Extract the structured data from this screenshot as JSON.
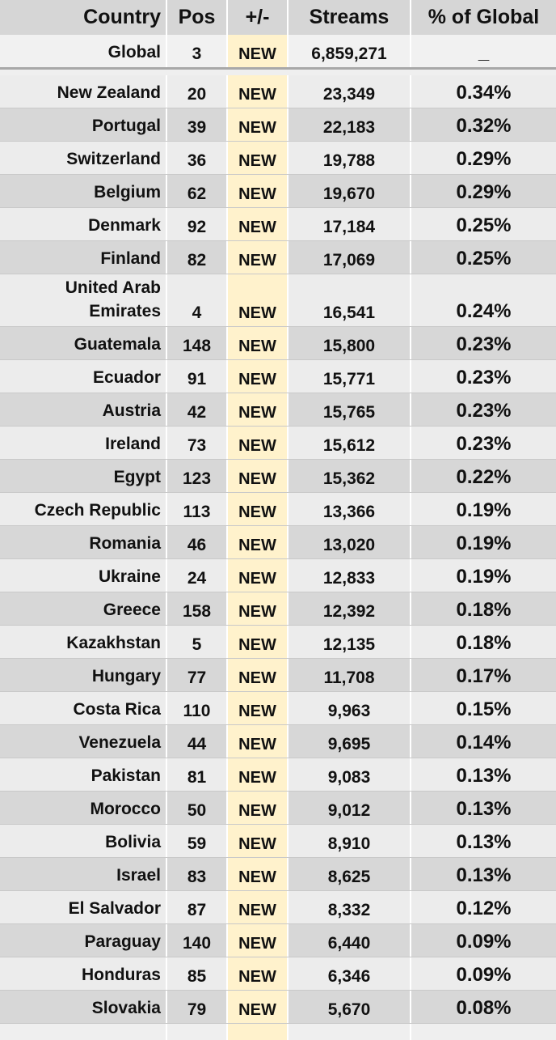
{
  "header": {
    "country": "Country",
    "pos": "Pos",
    "change": "+/-",
    "streams": "Streams",
    "pct": "% of Global"
  },
  "global": {
    "country": "Global",
    "pos": "3",
    "change": "NEW",
    "streams": "6,859,271",
    "pct": "_"
  },
  "rows": [
    {
      "country": "New Zealand",
      "pos": "20",
      "change": "NEW",
      "streams": "23,349",
      "pct": "0.34%"
    },
    {
      "country": "Portugal",
      "pos": "39",
      "change": "NEW",
      "streams": "22,183",
      "pct": "0.32%"
    },
    {
      "country": "Switzerland",
      "pos": "36",
      "change": "NEW",
      "streams": "19,788",
      "pct": "0.29%"
    },
    {
      "country": "Belgium",
      "pos": "62",
      "change": "NEW",
      "streams": "19,670",
      "pct": "0.29%"
    },
    {
      "country": "Denmark",
      "pos": "92",
      "change": "NEW",
      "streams": "17,184",
      "pct": "0.25%"
    },
    {
      "country": "Finland",
      "pos": "82",
      "change": "NEW",
      "streams": "17,069",
      "pct": "0.25%"
    },
    {
      "country": "United Arab Emirates",
      "pos": "4",
      "change": "NEW",
      "streams": "16,541",
      "pct": "0.24%"
    },
    {
      "country": "Guatemala",
      "pos": "148",
      "change": "NEW",
      "streams": "15,800",
      "pct": "0.23%"
    },
    {
      "country": "Ecuador",
      "pos": "91",
      "change": "NEW",
      "streams": "15,771",
      "pct": "0.23%"
    },
    {
      "country": "Austria",
      "pos": "42",
      "change": "NEW",
      "streams": "15,765",
      "pct": "0.23%"
    },
    {
      "country": "Ireland",
      "pos": "73",
      "change": "NEW",
      "streams": "15,612",
      "pct": "0.23%"
    },
    {
      "country": "Egypt",
      "pos": "123",
      "change": "NEW",
      "streams": "15,362",
      "pct": "0.22%"
    },
    {
      "country": "Czech Republic",
      "pos": "113",
      "change": "NEW",
      "streams": "13,366",
      "pct": "0.19%"
    },
    {
      "country": "Romania",
      "pos": "46",
      "change": "NEW",
      "streams": "13,020",
      "pct": "0.19%"
    },
    {
      "country": "Ukraine",
      "pos": "24",
      "change": "NEW",
      "streams": "12,833",
      "pct": "0.19%"
    },
    {
      "country": "Greece",
      "pos": "158",
      "change": "NEW",
      "streams": "12,392",
      "pct": "0.18%"
    },
    {
      "country": "Kazakhstan",
      "pos": "5",
      "change": "NEW",
      "streams": "12,135",
      "pct": "0.18%"
    },
    {
      "country": "Hungary",
      "pos": "77",
      "change": "NEW",
      "streams": "11,708",
      "pct": "0.17%"
    },
    {
      "country": "Costa Rica",
      "pos": "110",
      "change": "NEW",
      "streams": "9,963",
      "pct": "0.15%"
    },
    {
      "country": "Venezuela",
      "pos": "44",
      "change": "NEW",
      "streams": "9,695",
      "pct": "0.14%"
    },
    {
      "country": "Pakistan",
      "pos": "81",
      "change": "NEW",
      "streams": "9,083",
      "pct": "0.13%"
    },
    {
      "country": "Morocco",
      "pos": "50",
      "change": "NEW",
      "streams": "9,012",
      "pct": "0.13%"
    },
    {
      "country": "Bolivia",
      "pos": "59",
      "change": "NEW",
      "streams": "8,910",
      "pct": "0.13%"
    },
    {
      "country": "Israel",
      "pos": "83",
      "change": "NEW",
      "streams": "8,625",
      "pct": "0.13%"
    },
    {
      "country": "El Salvador",
      "pos": "87",
      "change": "NEW",
      "streams": "8,332",
      "pct": "0.12%"
    },
    {
      "country": "Paraguay",
      "pos": "140",
      "change": "NEW",
      "streams": "6,440",
      "pct": "0.09%"
    },
    {
      "country": "Honduras",
      "pos": "85",
      "change": "NEW",
      "streams": "6,346",
      "pct": "0.09%"
    },
    {
      "country": "Slovakia",
      "pos": "79",
      "change": "NEW",
      "streams": "5,670",
      "pct": "0.08%"
    }
  ]
}
